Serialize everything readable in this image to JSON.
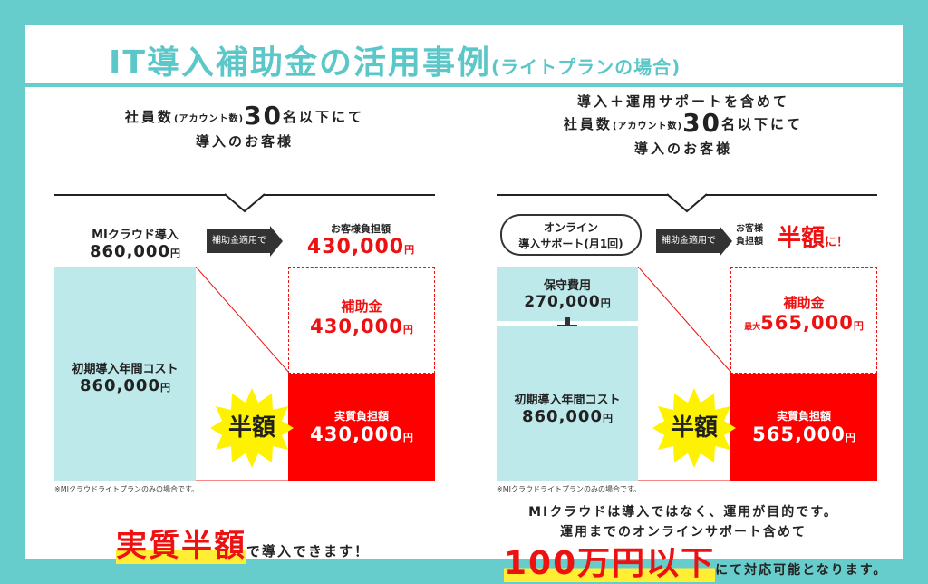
{
  "title": {
    "main": "IT導入補助金の活用事例",
    "sub": "(ライトプランの場合)"
  },
  "left": {
    "heading_pre": "社員数",
    "heading_paren": "(アカウント数)",
    "heading_num": "30",
    "heading_post": "名以下にて",
    "heading_line2": "導入のお客様",
    "product_label": "MIクラウド導入",
    "product_value": "860,000",
    "arrow_label": "補助金適用で",
    "customer_label": "お客様負担額",
    "customer_value": "430,000",
    "blue_label": "初期導入年間コスト",
    "blue_value": "860,000",
    "subsidy_label": "補助金",
    "subsidy_value": "430,000",
    "actual_label": "実質負担額",
    "actual_value": "430,000",
    "burst_text": "半額",
    "note": "※MIクラウドライトプランのみの場合です。",
    "bottom_highlight": "実質半額",
    "bottom_text": "で導入できます！"
  },
  "right": {
    "heading_line1": "導入＋運用サポートを含めて",
    "heading_pre": "社員数",
    "heading_paren": "(アカウント数)",
    "heading_num": "30",
    "heading_post": "名以下にて",
    "heading_line3": "導入のお客様",
    "pill_line1": "オンライン",
    "pill_line2": "導入サポート(月1回)",
    "arrow_label": "補助金適用で",
    "customer_label_1": "お客様",
    "customer_label_2": "負担額",
    "customer_value": "半額",
    "customer_suffix": "に！",
    "maint_label": "保守費用",
    "maint_value": "270,000",
    "blue_label": "初期導入年間コスト",
    "blue_value": "860,000",
    "subsidy_label": "補助金",
    "subsidy_max": "最大",
    "subsidy_value": "565,000",
    "actual_label": "実質負担額",
    "actual_value": "565,000",
    "burst_text": "半額",
    "note": "※MIクラウドライトプランのみの場合です。",
    "bottom_line1": "MIクラウドは導入ではなく、運用が目的です。",
    "bottom_line2": "運用までのオンラインサポート含めて",
    "bottom_highlight": "100万円以下",
    "bottom_text": "にて対応可能となります。"
  },
  "yen": "円",
  "colors": {
    "teal": "#66cccc",
    "red": "#ff0000",
    "light_blue": "#bde9ea",
    "yellow": "#ffee33"
  }
}
